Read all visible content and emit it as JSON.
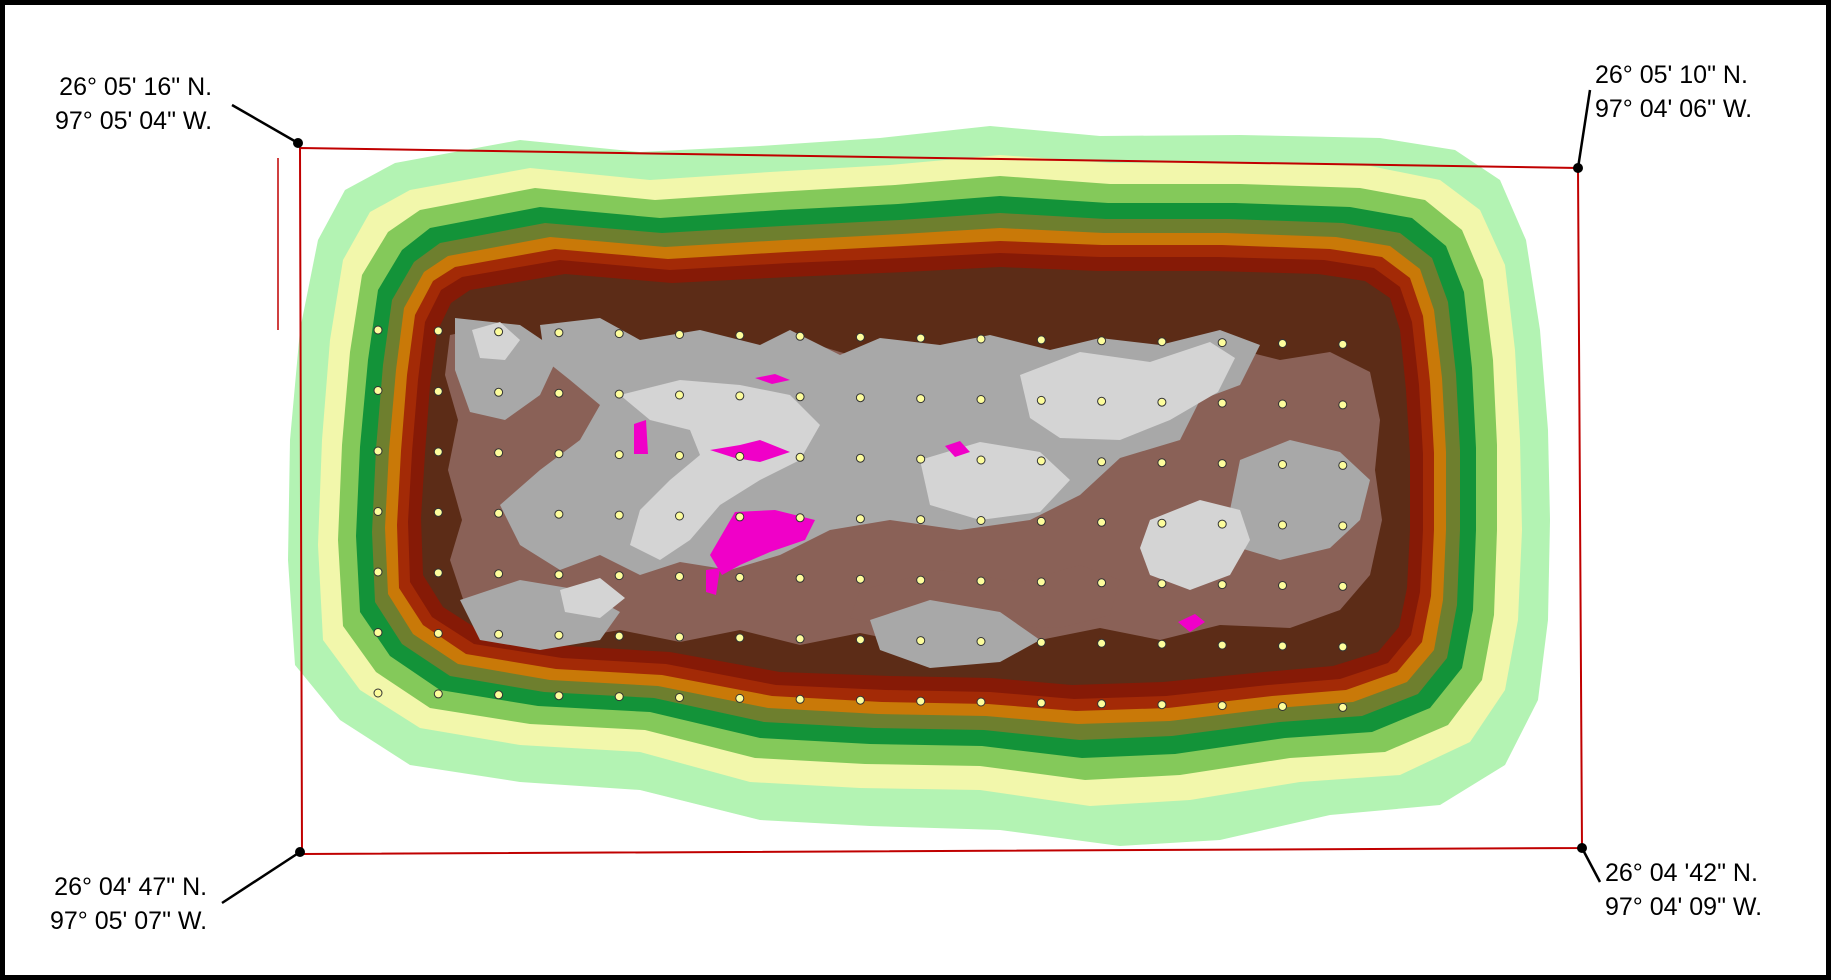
{
  "corners": {
    "nw": {
      "lat": "26° 05' 16\" N.",
      "lon": "97° 05' 04\" W."
    },
    "ne": {
      "lat": "26° 05' 10\" N.",
      "lon": "97° 04' 06\" W."
    },
    "sw": {
      "lat": "26° 04' 47\" N.",
      "lon": "97° 05' 07\" W."
    },
    "se": {
      "lat": "26° 04 '42\" N.",
      "lon": "97° 04' 09\" W."
    }
  },
  "colors": {
    "outline": "#c00000",
    "bands": [
      "#b3f3b3",
      "#f2f7ab",
      "#84c95a",
      "#139339",
      "#6e7f2e",
      "#c97908",
      "#a32a06",
      "#861a06",
      "#5c2c17",
      "#8a6157",
      "#a8a8a8",
      "#d4d4d4"
    ],
    "hotspot": "#f000c8",
    "sample_point": "#fdfd9c"
  },
  "sample_grid": {
    "columns": 17,
    "rows": 7
  }
}
